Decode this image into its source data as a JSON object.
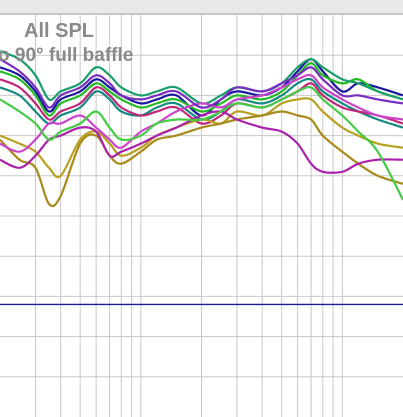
{
  "chart_data": {
    "type": "line",
    "title": "All SPL",
    "subtitle": "o 90° full baffle",
    "xlabel": "",
    "ylabel": "",
    "x_scale": "log",
    "xlim": [
      200,
      20000
    ],
    "ylim": [
      0,
      10
    ],
    "grid": true,
    "reference_line": {
      "y": 2.8,
      "color": "#1a1aa0"
    },
    "x": [
      200,
      250,
      300,
      350,
      400,
      500,
      600,
      700,
      800,
      1000,
      1200,
      1500,
      2000,
      2500,
      3000,
      4000,
      5000,
      6000,
      7000,
      8000,
      10000,
      12000,
      15000,
      20000
    ],
    "series": [
      {
        "color": "#1a1aa0",
        "values": [
          8.7,
          8.5,
          8.1,
          7.6,
          7.9,
          8.1,
          8.4,
          8.2,
          8.0,
          7.8,
          7.9,
          8.0,
          7.5,
          7.9,
          8.1,
          8.0,
          8.2,
          8.6,
          8.9,
          8.6,
          8.1,
          8.3,
          8.2,
          8.0
        ]
      },
      {
        "color": "#22bb22",
        "values": [
          8.6,
          8.4,
          8.0,
          7.5,
          7.8,
          8.0,
          8.3,
          8.1,
          7.9,
          7.7,
          7.8,
          7.9,
          7.6,
          7.8,
          8.0,
          7.9,
          8.1,
          8.5,
          8.8,
          8.5,
          8.3,
          8.4,
          8.1,
          7.9
        ]
      },
      {
        "color": "#1aa06a",
        "values": [
          9.1,
          8.9,
          8.5,
          7.9,
          8.1,
          8.3,
          8.7,
          8.5,
          8.2,
          8.0,
          8.1,
          8.2,
          7.8,
          8.0,
          8.2,
          8.1,
          8.3,
          8.7,
          8.9,
          8.7,
          8.4,
          8.3,
          8.1,
          7.9
        ]
      },
      {
        "color": "#148a80",
        "values": [
          8.2,
          8.0,
          7.6,
          7.3,
          7.5,
          7.7,
          8.1,
          7.9,
          7.6,
          7.5,
          7.7,
          7.8,
          7.4,
          7.6,
          7.9,
          7.8,
          8.0,
          8.3,
          8.4,
          8.1,
          7.8,
          7.6,
          7.4,
          7.2
        ]
      },
      {
        "color": "#c0287a",
        "values": [
          8.4,
          8.2,
          7.8,
          7.4,
          7.6,
          7.8,
          8.2,
          8.0,
          7.7,
          7.5,
          7.6,
          7.7,
          7.3,
          7.5,
          7.8,
          7.7,
          7.9,
          8.1,
          8.3,
          8.0,
          7.7,
          7.6,
          7.5,
          7.3
        ]
      },
      {
        "color": "#b8a020",
        "values": [
          7.0,
          6.8,
          6.6,
          6.2,
          6.0,
          6.9,
          7.1,
          6.8,
          6.5,
          6.7,
          7.0,
          7.2,
          7.4,
          7.3,
          7.6,
          7.5,
          7.8,
          7.9,
          7.9,
          7.6,
          7.2,
          7.0,
          6.8,
          6.7
        ]
      },
      {
        "color": "#a88a1a",
        "values": [
          6.9,
          6.4,
          6.2,
          5.3,
          5.5,
          6.8,
          7.0,
          6.5,
          6.3,
          6.6,
          6.9,
          7.0,
          7.2,
          7.3,
          7.4,
          7.5,
          7.6,
          7.5,
          7.4,
          7.0,
          6.6,
          6.3,
          6.0,
          5.8
        ]
      },
      {
        "color": "#aa22aa",
        "values": [
          6.4,
          6.2,
          6.5,
          6.9,
          7.0,
          7.2,
          7.1,
          6.5,
          6.6,
          6.8,
          7.0,
          7.2,
          7.5,
          7.6,
          7.4,
          7.2,
          7.1,
          6.8,
          6.3,
          6.1,
          6.1,
          6.3,
          6.4,
          6.4
        ]
      },
      {
        "color": "#cc44cc",
        "values": [
          6.8,
          6.6,
          6.9,
          7.3,
          7.3,
          7.5,
          7.2,
          6.9,
          6.7,
          7.1,
          7.3,
          7.6,
          7.8,
          7.7,
          7.9,
          8.0,
          8.2,
          8.4,
          8.5,
          8.2,
          7.9,
          7.7,
          7.5,
          7.4
        ]
      },
      {
        "color": "#44cc44",
        "values": [
          7.9,
          7.6,
          7.3,
          6.9,
          7.1,
          7.3,
          7.6,
          7.2,
          6.9,
          7.0,
          7.3,
          7.4,
          7.4,
          7.6,
          7.8,
          7.7,
          7.9,
          8.1,
          8.2,
          7.9,
          7.5,
          7.1,
          6.6,
          5.4
        ]
      },
      {
        "color": "#7a2ec0",
        "values": [
          8.9,
          8.6,
          8.2,
          7.7,
          8.0,
          8.2,
          8.5,
          8.3,
          8.0,
          7.9,
          8.0,
          8.1,
          7.7,
          7.9,
          8.2,
          8.1,
          8.3,
          8.5,
          8.7,
          8.4,
          8.0,
          8.0,
          7.9,
          7.8
        ]
      }
    ]
  }
}
